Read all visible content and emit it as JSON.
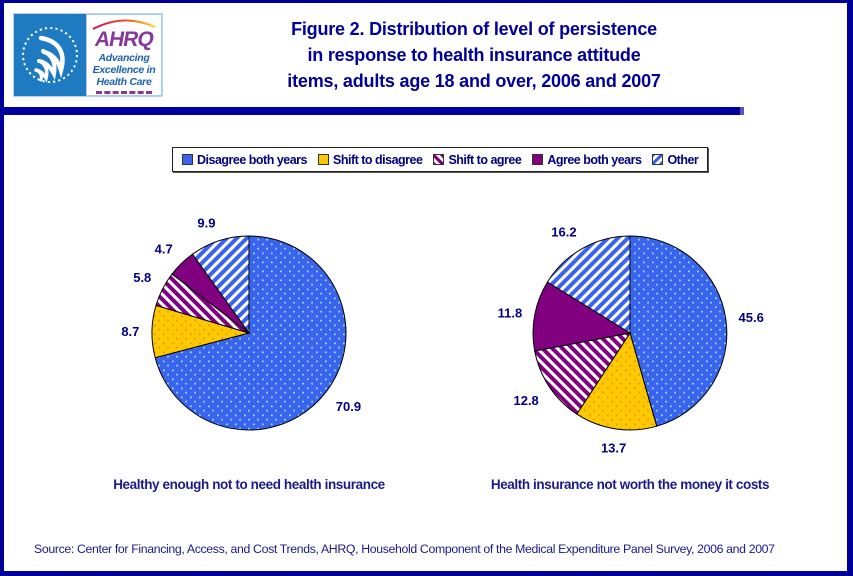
{
  "header": {
    "logo": {
      "ahrq": "AHRQ",
      "tagline_lines": [
        "Advancing",
        "Excellence in",
        "Health Care"
      ]
    },
    "title_lines": [
      "Figure 2. Distribution of level of persistence",
      "in response to health insurance attitude",
      "items, adults age 18 and over, 2006 and 2007"
    ]
  },
  "legend": {
    "items": [
      {
        "label": "Disagree both years",
        "fill": "dots-blue"
      },
      {
        "label": "Shift to disagree",
        "fill": "dots-yellow"
      },
      {
        "label": "Shift to agree",
        "fill": "hatch-purple"
      },
      {
        "label": "Agree both years",
        "fill": "solid-purple"
      },
      {
        "label": "Other",
        "fill": "hatch-blue"
      }
    ]
  },
  "chart_data": [
    {
      "type": "pie",
      "title": "Healthy enough not to need health insurance",
      "unit": "percent",
      "start_angle_deg": 0,
      "direction": "clockwise",
      "slices": [
        {
          "label": "Disagree both years",
          "value": 70.9
        },
        {
          "label": "Shift to disagree",
          "value": 8.7
        },
        {
          "label": "Shift to agree",
          "value": 5.8
        },
        {
          "label": "Agree both years",
          "value": 4.7
        },
        {
          "label": "Other",
          "value": 9.9
        }
      ]
    },
    {
      "type": "pie",
      "title": "Health insurance not worth the money it costs",
      "unit": "percent",
      "start_angle_deg": 0,
      "direction": "clockwise",
      "slices": [
        {
          "label": "Disagree both years",
          "value": 45.6
        },
        {
          "label": "Shift to disagree",
          "value": 13.7
        },
        {
          "label": "Shift to agree",
          "value": 12.8
        },
        {
          "label": "Agree both years",
          "value": 11.8
        },
        {
          "label": "Other",
          "value": 16.2
        }
      ]
    }
  ],
  "source": "Source: Center for Financing, Access, and Cost Trends, AHRQ, Household Component of the Medical Expenditure Panel Survey,  2006 and 2007",
  "colors": {
    "border_navy": "#000099",
    "title_navy": "#000099",
    "label_navy": "#000080",
    "blue": "#3A64ED",
    "blue_dot": "#8FE4F8",
    "yellow": "#FFC800",
    "yellow_dot": "#D99400",
    "purple": "#800080",
    "hhs_blue": "#1E7BC2",
    "ahrq_purple": "#86389B",
    "tagline_blue": "#1C63B0"
  }
}
